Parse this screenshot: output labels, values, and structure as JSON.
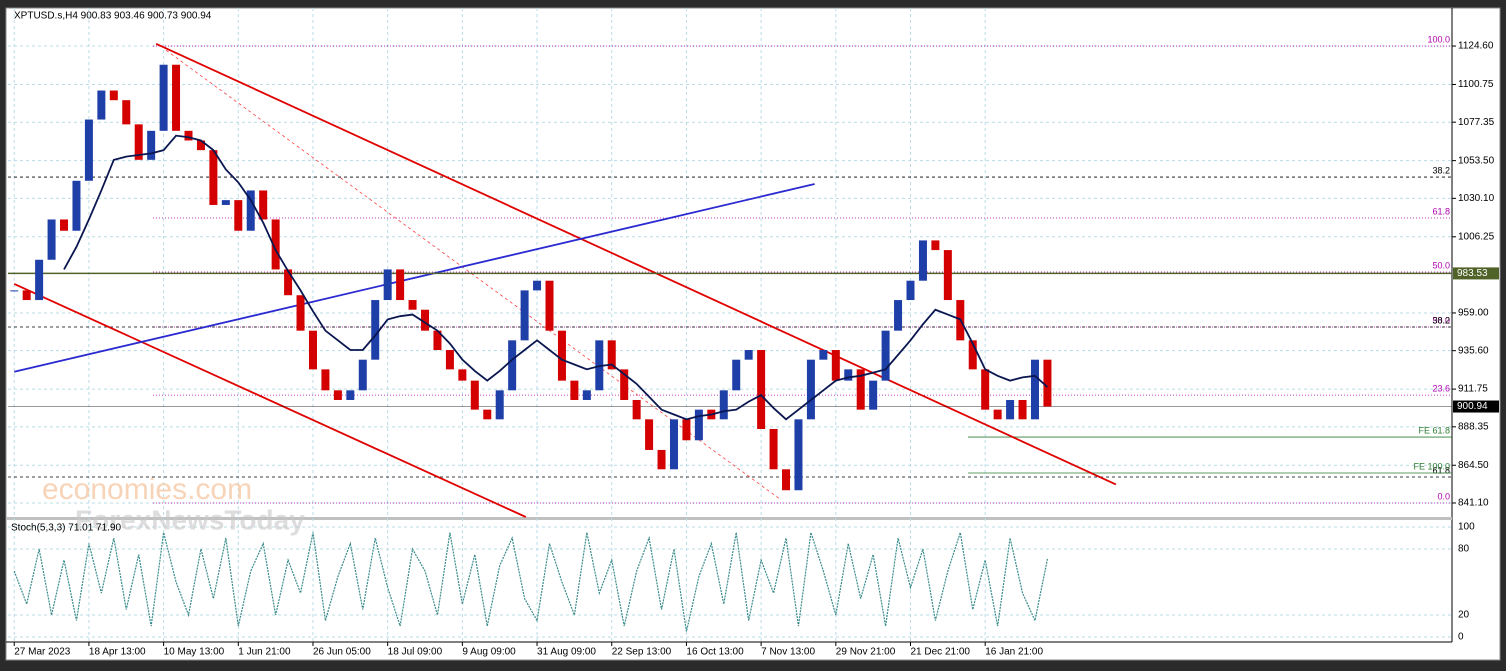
{
  "chart_data": {
    "type": "candlestick",
    "title": "XPTUSD.s,H4  900.83 903.46 900.73 900.94",
    "categories": [
      "27 Mar 2023",
      null,
      null,
      null,
      null,
      null,
      "18 Apr 13:00",
      null,
      null,
      null,
      null,
      null,
      "10 May 13:00",
      null,
      null,
      null,
      null,
      null,
      "1 Jun 21:00",
      null,
      null,
      null,
      null,
      null,
      "26 Jun 05:00",
      null,
      null,
      null,
      null,
      null,
      "18 Jul 09:00",
      null,
      null,
      null,
      null,
      null,
      "9 Aug 09:00",
      null,
      null,
      null,
      null,
      null,
      "31 Aug 09:00",
      null,
      null,
      null,
      null,
      null,
      "22 Sep 13:00",
      null,
      null,
      null,
      null,
      null,
      "16 Oct 13:00",
      null,
      null,
      null,
      null,
      null,
      "7 Nov 13:00",
      null,
      null,
      null,
      null,
      null,
      "29 Nov 21:00",
      null,
      null,
      null,
      null,
      null,
      "21 Dec 21:00",
      null,
      null,
      null,
      null,
      null,
      "16 Jan 21:00",
      null,
      null,
      null,
      null,
      null
    ],
    "xlim": [
      -0.5,
      115.5
    ],
    "close": [
      973,
      967,
      992,
      1017,
      1010,
      1041,
      1079,
      1097,
      1091,
      1076,
      1054,
      1072,
      1113,
      1072,
      1066,
      1060,
      1026,
      1029,
      1010,
      1035,
      1017,
      986,
      970,
      948,
      924,
      911,
      905,
      911,
      930,
      967,
      986,
      967,
      961,
      948,
      936,
      924,
      917,
      899,
      893,
      911,
      942,
      973,
      979,
      948,
      917,
      905,
      911,
      942,
      924,
      905,
      893,
      874,
      862,
      893,
      880,
      899,
      893,
      911,
      930,
      936,
      887,
      862,
      849,
      893,
      930,
      936,
      917,
      924,
      899,
      917,
      948,
      967,
      979,
      1004,
      998,
      967,
      942,
      924,
      899,
      893,
      905,
      893,
      930,
      900.94
    ],
    "up_color": "#1f3fa8",
    "down_color": "#d40000",
    "ma": {
      "color": "#0a1650",
      "values": [
        null,
        null,
        null,
        null,
        986,
        1000,
        1017,
        1035,
        1054,
        1056,
        1057,
        1058,
        1060,
        1069,
        1068,
        1066,
        1060,
        1048,
        1040,
        1029,
        1015,
        998,
        985,
        973,
        960,
        948,
        942,
        936,
        936,
        945,
        955,
        957,
        958,
        953,
        948,
        940,
        930,
        923,
        917,
        923,
        930,
        936,
        942,
        936,
        930,
        927,
        924,
        926,
        927,
        921,
        915,
        907,
        899,
        896,
        893,
        895,
        896,
        898,
        899,
        904,
        908,
        900,
        893,
        899,
        905,
        911,
        917,
        919,
        920,
        922,
        924,
        933,
        942,
        952,
        961,
        958,
        955,
        940,
        924,
        920,
        917,
        919,
        920,
        913
      ]
    },
    "ylim": [
      832.4,
      1148.2
    ],
    "yticks": [
      {
        "value": 1124.6,
        "label": "1124.60"
      },
      {
        "value": 1100.75,
        "label": "1100.75"
      },
      {
        "value": 1077.35,
        "label": "1077.35"
      },
      {
        "value": 1053.5,
        "label": "1053.50"
      },
      {
        "value": 1030.1,
        "label": "1030.10"
      },
      {
        "value": 1006.25,
        "label": "1006.25"
      },
      {
        "value": 959,
        "label": "959.00"
      },
      {
        "value": 935.6,
        "label": "935.60"
      },
      {
        "value": 911.75,
        "label": "911.75"
      },
      {
        "value": 888.35,
        "label": "888.35"
      },
      {
        "value": 864.5,
        "label": "864.50"
      },
      {
        "value": 841.1,
        "label": "841.10"
      }
    ],
    "grid": true,
    "price_markers": [
      {
        "label": "983.53",
        "value": 983.53,
        "color": "#4f6228"
      },
      {
        "label": "900.94",
        "value": 900.94,
        "color": "#000000"
      }
    ],
    "levels": [
      {
        "label": "100.0",
        "value": 1124.6,
        "style": "fib"
      },
      {
        "label": "61.8",
        "value": 1017.9,
        "style": "fib"
      },
      {
        "label": "38.2",
        "value": 1043.3,
        "style": "dash"
      },
      {
        "label": "50.0",
        "value": 984.4,
        "style": "fib"
      },
      {
        "label": "50.0",
        "value": 950.3,
        "style": "fib"
      },
      {
        "label": "38.2",
        "value": 950.3,
        "style": "dash"
      },
      {
        "label": "23.6",
        "value": 908.0,
        "style": "fib"
      },
      {
        "label": "61.8",
        "value": 857.2,
        "style": "dash"
      },
      {
        "label": "0.0",
        "value": 841.1,
        "style": "fib"
      },
      {
        "label": "FE 61.8",
        "value": 882.0,
        "style": "fe"
      },
      {
        "label": "FE 100.0",
        "value": 859.7,
        "style": "fe"
      }
    ],
    "trendlines": [
      {
        "x1": 11.4,
        "y1": 1126,
        "x2": 88.5,
        "y2": 852.6,
        "color": "#e00000",
        "dash": false
      },
      {
        "x1": 0,
        "y1": 977,
        "x2": 41.1,
        "y2": 832.4,
        "color": "#e00000",
        "dash": false
      },
      {
        "x1": 12.2,
        "y1": 1122,
        "x2": 61.6,
        "y2": 843,
        "color": "#ff4040",
        "dash": true
      },
      {
        "x1": 0,
        "y1": 922.5,
        "x2": 64.3,
        "y2": 1039,
        "color": "#2a2ad0",
        "dash": false
      }
    ],
    "watermark": [
      "economies.com",
      "ForexNewsToday"
    ],
    "stoch": {
      "label": "Stoch(5,3,3) 71.01 71.90",
      "color": "#3a8a8a",
      "ylim": [
        -4.5,
        106.4
      ],
      "yticks": [
        100,
        80,
        20,
        0
      ],
      "values": [
        60,
        30,
        80,
        20,
        70,
        15,
        85,
        40,
        90,
        25,
        75,
        10,
        95,
        50,
        20,
        80,
        35,
        90,
        10,
        60,
        85,
        20,
        70,
        40,
        95,
        15,
        55,
        85,
        25,
        90,
        45,
        10,
        80,
        60,
        20,
        95,
        30,
        75,
        10,
        65,
        90,
        35,
        15,
        85,
        50,
        20,
        95,
        40,
        70,
        10,
        60,
        90,
        25,
        80,
        5,
        55,
        85,
        30,
        95,
        15,
        70,
        40,
        90,
        10,
        95,
        60,
        20,
        85,
        35,
        75,
        10,
        90,
        45,
        80,
        15,
        60,
        95,
        25,
        70,
        10,
        90,
        40,
        15,
        71.01
      ]
    }
  }
}
